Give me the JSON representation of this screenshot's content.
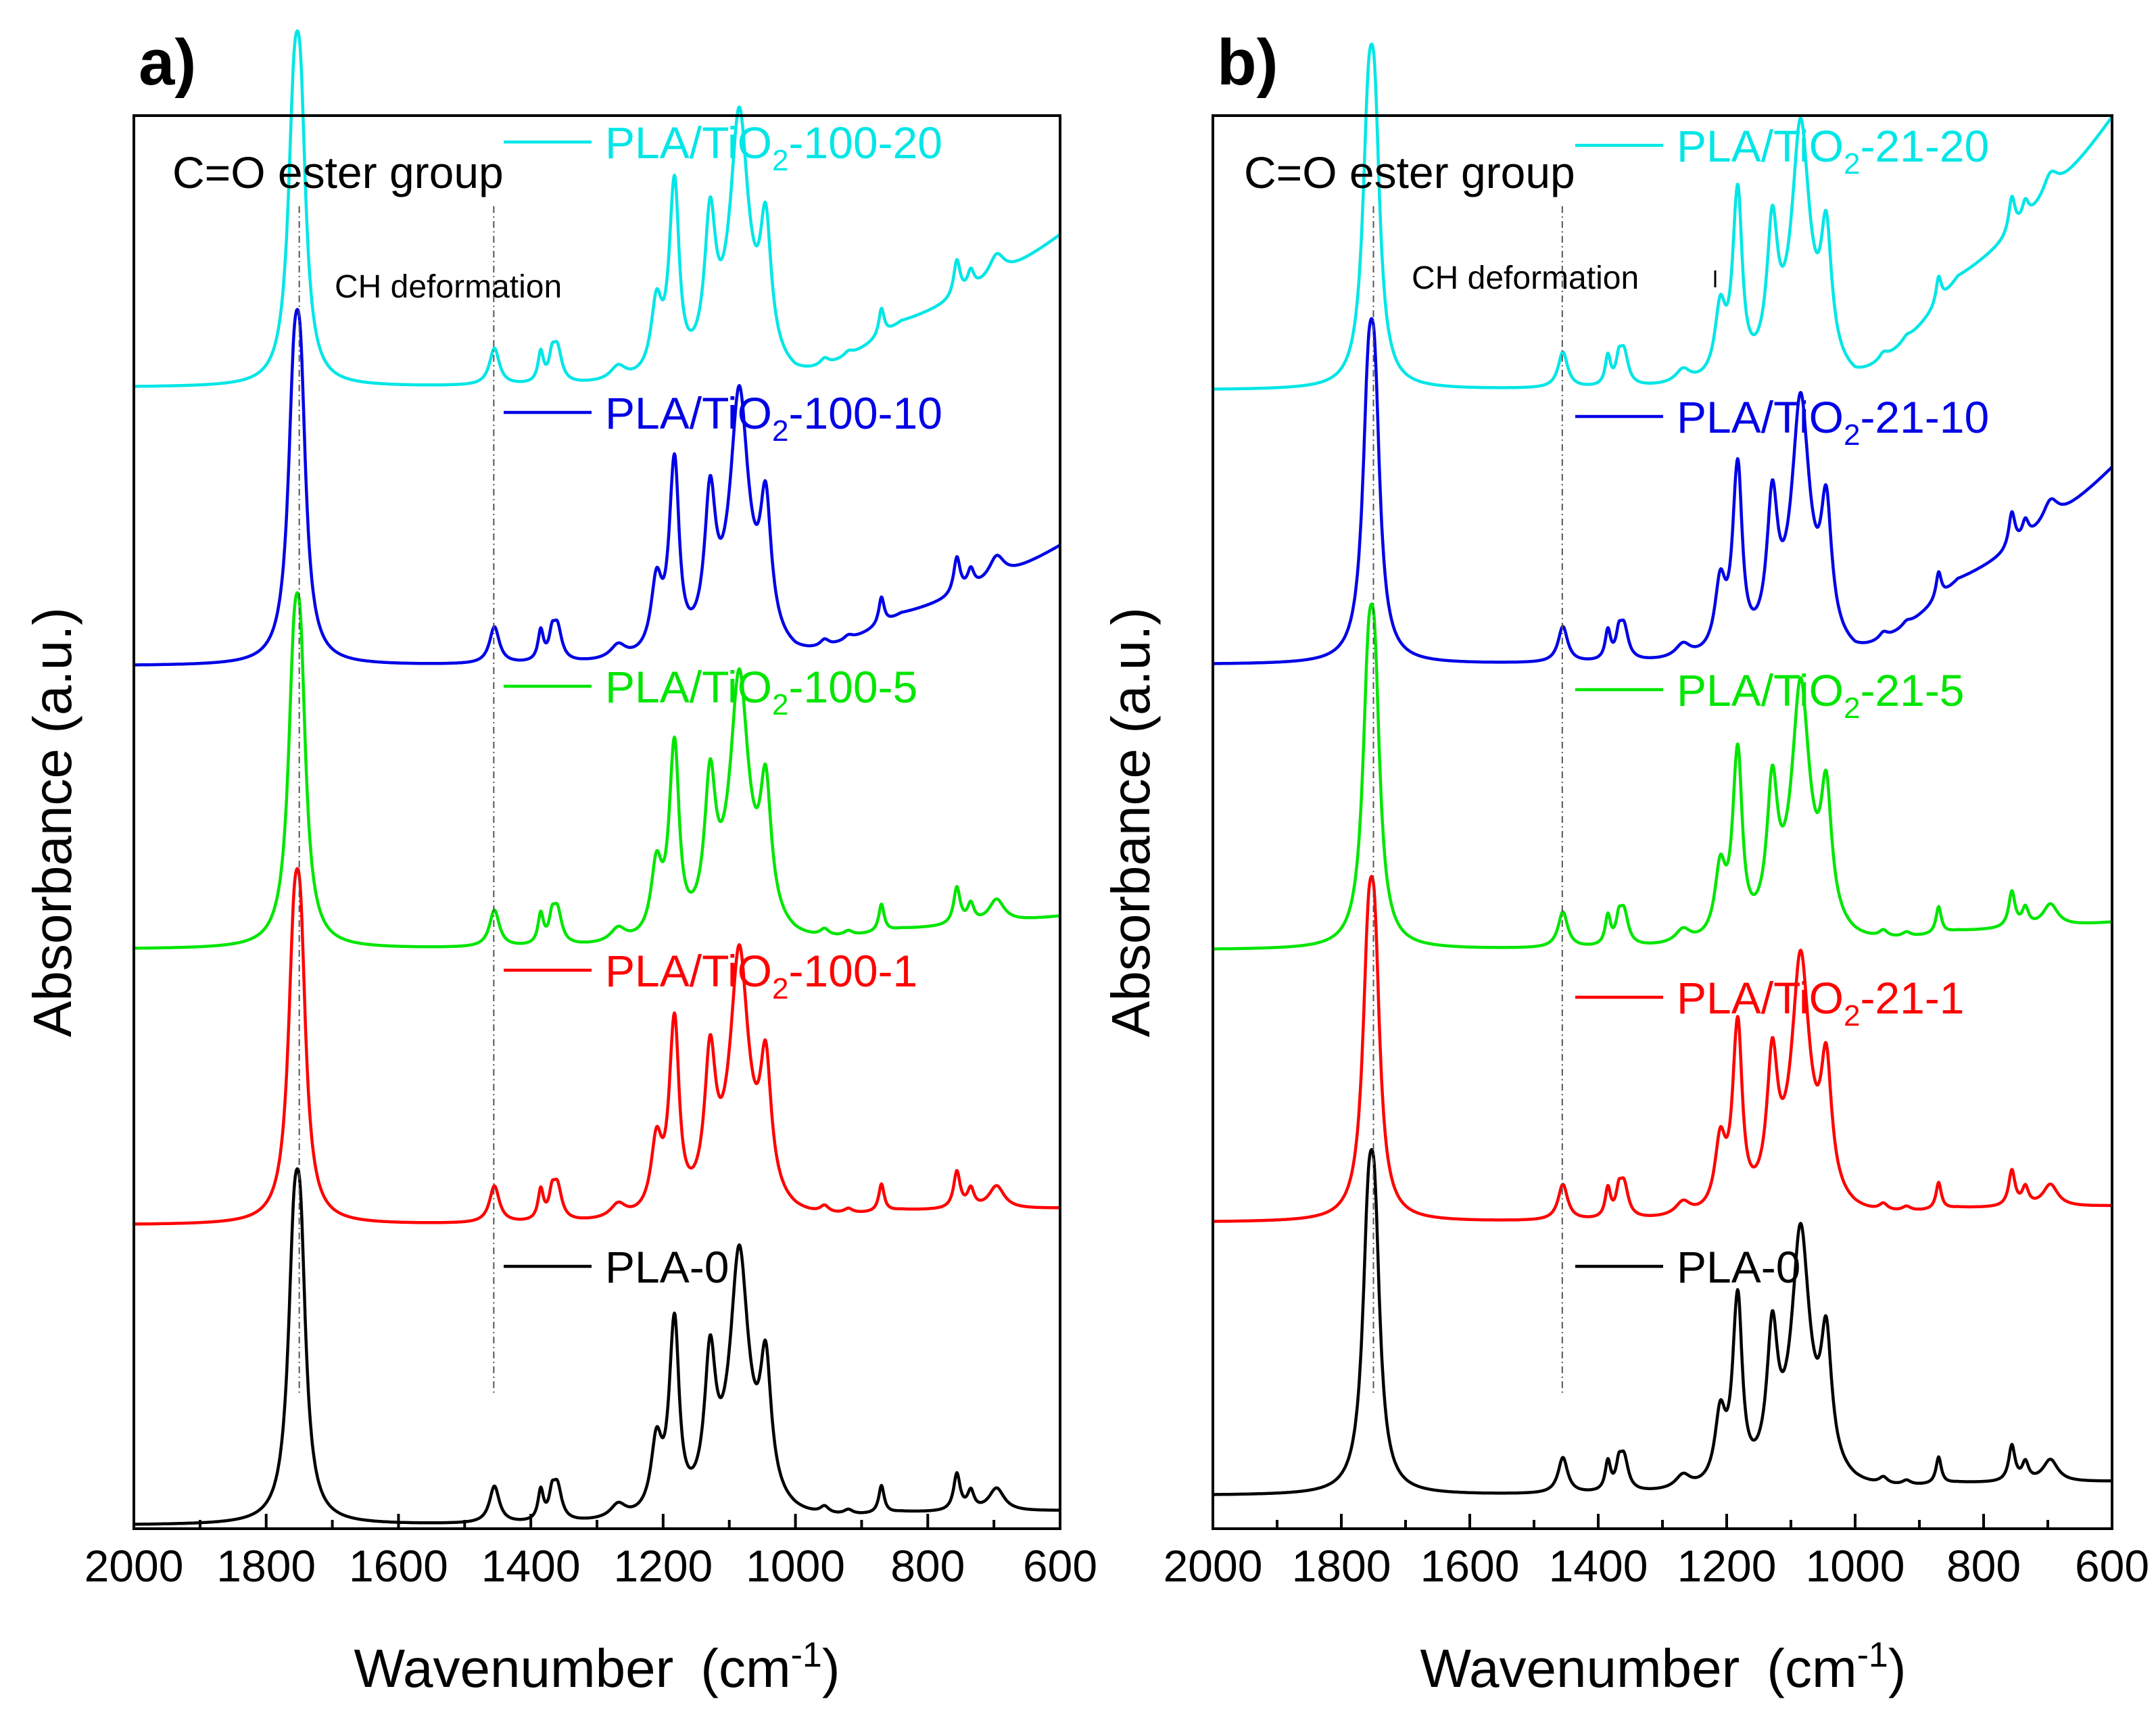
{
  "chart_data": [
    {
      "type": "line",
      "panel_label": "a)",
      "xlabel": "Wavenumber",
      "xunit": "(cm",
      "xunit_sup": "-1",
      "xunit_close": ")",
      "ylabel": "Absorbance  (a.u.)",
      "xlim": [
        2000,
        600
      ],
      "xticks": [
        "2000",
        "1800",
        "1600",
        "1400",
        "1200",
        "1000",
        "800",
        "600"
      ],
      "annotations": {
        "ester": "C=O  ester group",
        "ch": "CH deformation"
      },
      "markers": [
        1750,
        1456
      ],
      "series": [
        {
          "name": "PLA-0",
          "pre": "PLA-0",
          "sub": "",
          "post": "",
          "color": "#000000",
          "offset": 0,
          "tail": [
            0.06,
            0.0
          ]
        },
        {
          "name": "PLA/TiO2-100-1",
          "pre": "PLA/TiO",
          "sub": "2",
          "post": "-100-1",
          "color": "#ff0000",
          "offset": 1,
          "tail": [
            0.07,
            0.0
          ]
        },
        {
          "name": "PLA/TiO2-100-5",
          "pre": "PLA/TiO",
          "sub": "2",
          "post": "-100-5",
          "color": "#00e600",
          "offset": 2,
          "tail": [
            0.09,
            0.05
          ]
        },
        {
          "name": "PLA/TiO2-100-10",
          "pre": "PLA/TiO",
          "sub": "2",
          "post": "-100-10",
          "color": "#0000e6",
          "offset": 3,
          "tail": [
            0.22,
            0.3
          ]
        },
        {
          "name": "PLA/TiO2-100-20",
          "pre": "PLA/TiO",
          "sub": "2",
          "post": "-100-20",
          "color": "#00e6e6",
          "offset": 4,
          "tail": [
            0.28,
            0.38
          ]
        }
      ]
    },
    {
      "type": "line",
      "panel_label": "b)",
      "xlabel": "Wavenumber",
      "xunit": "(cm",
      "xunit_sup": "-1",
      "xunit_close": ")",
      "ylabel": "Absorbance  (a.u.)",
      "xlim": [
        2000,
        600
      ],
      "xticks": [
        "2000",
        "1800",
        "1600",
        "1400",
        "1200",
        "1000",
        "800",
        "600"
      ],
      "annotations": {
        "ester": "C=O  ester group",
        "ch": "CH deformation"
      },
      "markers": [
        1750,
        1456
      ],
      "series": [
        {
          "name": "PLA-0",
          "pre": "PLA-0",
          "sub": "",
          "post": "",
          "color": "#000000",
          "offset": 0,
          "tail": [
            0.06,
            0.0
          ]
        },
        {
          "name": "PLA/TiO2-21-1",
          "pre": "PLA/TiO",
          "sub": "2",
          "post": "-21-1",
          "color": "#ff0000",
          "offset": 1,
          "tail": [
            0.07,
            0.0
          ]
        },
        {
          "name": "PLA/TiO2-21-5",
          "pre": "PLA/TiO",
          "sub": "2",
          "post": "-21-5",
          "color": "#00e600",
          "offset": 2,
          "tail": [
            0.09,
            0.03
          ]
        },
        {
          "name": "PLA/TiO2-21-10",
          "pre": "PLA/TiO",
          "sub": "2",
          "post": "-21-10",
          "color": "#0000e6",
          "offset": 3,
          "tail": [
            0.38,
            0.5
          ]
        },
        {
          "name": "PLA/TiO2-21-20",
          "pre": "PLA/TiO",
          "sub": "2",
          "post": "-21-20",
          "color": "#00e6e6",
          "offset": 4,
          "tail": [
            0.5,
            0.72
          ]
        }
      ]
    }
  ]
}
